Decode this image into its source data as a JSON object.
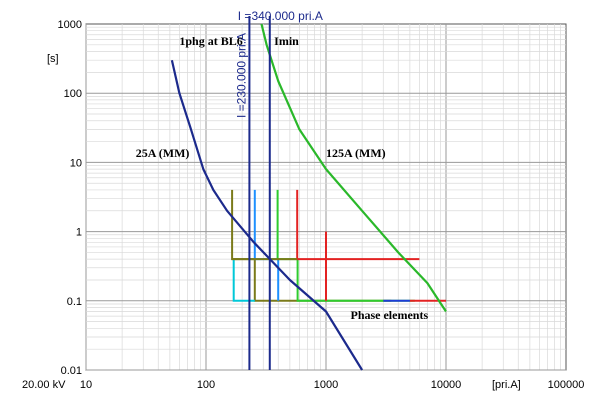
{
  "chart_data": {
    "type": "line",
    "x_scale": "log",
    "y_scale": "log",
    "xlim": [
      10,
      100000
    ],
    "ylim": [
      0.01,
      1000
    ],
    "x_tick_labels": [
      "10",
      "100",
      "1000",
      "10000",
      "100000"
    ],
    "y_tick_labels": [
      "1000",
      "100",
      "10",
      "1",
      "0.1",
      "0.01"
    ],
    "x_unit_label": "[pri.A]",
    "y_unit_label": "[s]",
    "voltage_label": "20.00 kV",
    "grid": true,
    "vertical_markers": [
      {
        "label": "I =340.000 pri.A",
        "x": 340,
        "color": "#1c2a8c"
      },
      {
        "label": "I =230.000 pri.A",
        "x": 230,
        "color": "#1c2a8c"
      }
    ],
    "curves": [
      {
        "color": "#1c2a8c",
        "points": [
          [
            52,
            300
          ],
          [
            60,
            100
          ],
          [
            75,
            30
          ],
          [
            95,
            8
          ],
          [
            115,
            4
          ],
          [
            150,
            2
          ],
          [
            250,
            0.7
          ],
          [
            500,
            0.2
          ],
          [
            1000,
            0.07
          ],
          [
            2000,
            0.01
          ]
        ]
      },
      {
        "color": "#2ab82a",
        "points": [
          [
            290,
            1000
          ],
          [
            320,
            500
          ],
          [
            400,
            150
          ],
          [
            600,
            30
          ],
          [
            1000,
            8
          ],
          [
            2000,
            2
          ],
          [
            4000,
            0.5
          ],
          [
            7000,
            0.18
          ],
          [
            10000,
            0.07
          ]
        ]
      }
    ],
    "step_elements": [
      {
        "color": "#7a7a1a",
        "points": [
          [
            165,
            4
          ],
          [
            165,
            0.4
          ],
          [
            255,
            0.4
          ],
          [
            255,
            0.1
          ],
          [
            3500,
            0.1
          ]
        ]
      },
      {
        "color": "#1e90ff",
        "points": [
          [
            255,
            4
          ],
          [
            255,
            0.4
          ],
          [
            400,
            0.4
          ],
          [
            400,
            0.1
          ]
        ]
      },
      {
        "color": "#00c8d8",
        "points": [
          [
            170,
            0.4
          ],
          [
            170,
            0.1
          ],
          [
            255,
            0.1
          ]
        ]
      },
      {
        "color": "#2ecc2e",
        "points": [
          [
            395,
            4
          ],
          [
            395,
            0.4
          ],
          [
            580,
            0.4
          ],
          [
            580,
            0.1
          ],
          [
            5500,
            0.1
          ]
        ]
      },
      {
        "color": "#e32222",
        "points": [
          [
            575,
            4
          ],
          [
            575,
            0.4
          ],
          [
            6000,
            0.4
          ]
        ]
      },
      {
        "color": "#e32222",
        "points": [
          [
            1000,
            1
          ],
          [
            1000,
            0.1
          ]
        ]
      },
      {
        "color": "#e32222",
        "points": [
          [
            5000,
            0.1
          ],
          [
            10000,
            0.1
          ]
        ]
      },
      {
        "color": "#1e3cd8",
        "points": [
          [
            3000,
            0.1
          ],
          [
            5000,
            0.1
          ]
        ]
      },
      {
        "color": "#7a7a1a",
        "points": [
          [
            165,
            0.4
          ],
          [
            575,
            0.4
          ]
        ]
      }
    ],
    "annotations": [
      {
        "text": "1phg at BL6",
        "x": 60,
        "y": 500
      },
      {
        "text": "Imin",
        "x": 370,
        "y": 500
      },
      {
        "text": "25A (MM)",
        "x": 26,
        "y": 12
      },
      {
        "text": "125A (MM)",
        "x": 1000,
        "y": 12
      },
      {
        "text": "Phase elements",
        "x": 1600,
        "y": 0.055
      }
    ]
  }
}
